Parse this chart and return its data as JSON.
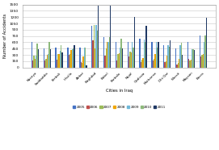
{
  "cities": [
    "Nasirya",
    "Saddaddia",
    "Kerbali",
    "Hisslla",
    "Anbar",
    "Baghdad",
    "Babel",
    "Karbala",
    "Najaf",
    "Qadissia",
    "Muthanna",
    "Dhi Qar",
    "Wassit",
    "Maysan",
    "Basra"
  ],
  "years": [
    "2005",
    "2006",
    "2007",
    "2008",
    "2009",
    "2010",
    "2011"
  ],
  "bar_colors": [
    "#4472C4",
    "#C0504D",
    "#9BBB59",
    "#F0A500",
    "#70B8D8",
    "#8DB97B",
    "#1F3864"
  ],
  "data": {
    "2005": [
      600,
      460,
      470,
      470,
      470,
      1000,
      720,
      610,
      610,
      680,
      610,
      540,
      455,
      615,
      770
    ],
    "2006": [
      175,
      165,
      195,
      310,
      130,
      640,
      290,
      175,
      270,
      130,
      175,
      125,
      75,
      205,
      255
    ],
    "2007": [
      280,
      200,
      320,
      330,
      115,
      1020,
      460,
      320,
      375,
      180,
      210,
      155,
      100,
      165,
      300
    ],
    "2008": [
      200,
      310,
      330,
      420,
      260,
      455,
      600,
      345,
      360,
      225,
      325,
      285,
      200,
      185,
      325
    ],
    "2009": [
      280,
      320,
      390,
      430,
      475,
      1020,
      600,
      465,
      615,
      675,
      600,
      530,
      530,
      430,
      600
    ],
    "2010": [
      580,
      600,
      530,
      460,
      470,
      870,
      730,
      680,
      480,
      600,
      470,
      490,
      595,
      430,
      760
    ],
    "2011": [
      440,
      440,
      350,
      530,
      60,
      1480,
      1480,
      460,
      1200,
      1000,
      605,
      640,
      300,
      420,
      1180
    ]
  },
  "ylabel": "Number of Accidents",
  "xlabel": "Cities in Iraq",
  "ylim": [
    0,
    1500
  ],
  "yticks": [
    0,
    150,
    300,
    450,
    600,
    750,
    900,
    1050,
    1200,
    1350,
    1500
  ],
  "legend_labels": [
    "2005",
    "2006",
    "2007",
    "2008",
    "2009",
    "2010",
    "2011"
  ],
  "background_color": "#FFFFFF",
  "grid_color": "#C8C8C8"
}
